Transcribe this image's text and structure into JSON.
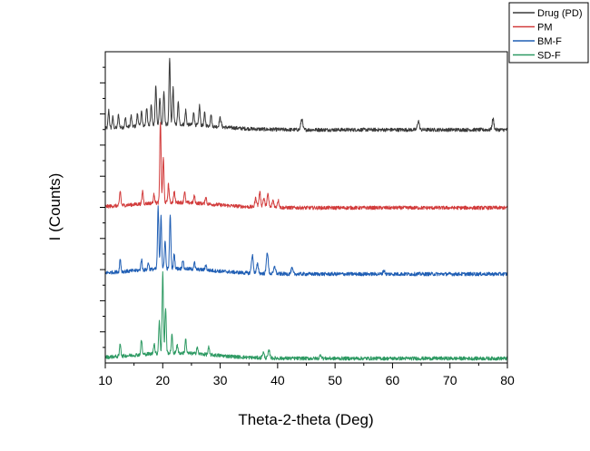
{
  "chart_data": {
    "type": "line",
    "xlabel": "Theta-2-theta (Deg)",
    "ylabel": "I (Counts)",
    "xlim": [
      10,
      80
    ],
    "x_ticks": [
      "10",
      "20",
      "30",
      "40",
      "50",
      "60",
      "70",
      "80"
    ],
    "grid": false,
    "legend_position": "top-right",
    "series": [
      {
        "name": "Drug (PD)",
        "color": "#3a3a3a",
        "offset": 3,
        "peaks": [
          [
            10.6,
            0.1
          ],
          [
            11.3,
            0.06
          ],
          [
            12.3,
            0.07
          ],
          [
            13.5,
            0.05
          ],
          [
            14.5,
            0.06
          ],
          [
            15.6,
            0.07
          ],
          [
            16.3,
            0.08
          ],
          [
            17.2,
            0.1
          ],
          [
            18.0,
            0.12
          ],
          [
            18.8,
            0.22
          ],
          [
            19.5,
            0.15
          ],
          [
            20.2,
            0.18
          ],
          [
            21.2,
            0.36
          ],
          [
            21.8,
            0.2
          ],
          [
            22.7,
            0.12
          ],
          [
            24.0,
            0.08
          ],
          [
            25.4,
            0.07
          ],
          [
            26.4,
            0.11
          ],
          [
            27.3,
            0.07
          ],
          [
            28.4,
            0.07
          ],
          [
            30.0,
            0.05
          ],
          [
            44.2,
            0.06
          ],
          [
            64.5,
            0.05
          ],
          [
            77.5,
            0.06
          ]
        ]
      },
      {
        "name": "PM",
        "color": "#d23c3c",
        "offset": 2,
        "peaks": [
          [
            12.6,
            0.08
          ],
          [
            16.5,
            0.07
          ],
          [
            18.5,
            0.05
          ],
          [
            19.6,
            0.45
          ],
          [
            20.1,
            0.25
          ],
          [
            21.0,
            0.1
          ],
          [
            22.0,
            0.06
          ],
          [
            23.8,
            0.06
          ],
          [
            25.5,
            0.04
          ],
          [
            27.5,
            0.04
          ],
          [
            36.2,
            0.05
          ],
          [
            36.9,
            0.08
          ],
          [
            37.6,
            0.05
          ],
          [
            38.3,
            0.07
          ],
          [
            39.2,
            0.04
          ],
          [
            40.1,
            0.04
          ]
        ]
      },
      {
        "name": "BM-F",
        "color": "#1f5eb4",
        "offset": 1,
        "peaks": [
          [
            12.6,
            0.07
          ],
          [
            16.3,
            0.06
          ],
          [
            17.5,
            0.04
          ],
          [
            19.2,
            0.34
          ],
          [
            19.7,
            0.3
          ],
          [
            20.4,
            0.16
          ],
          [
            21.3,
            0.3
          ],
          [
            22.0,
            0.08
          ],
          [
            23.5,
            0.05
          ],
          [
            25.5,
            0.04
          ],
          [
            27.5,
            0.03
          ],
          [
            35.6,
            0.1
          ],
          [
            36.5,
            0.05
          ],
          [
            38.2,
            0.12
          ],
          [
            39.5,
            0.04
          ],
          [
            42.5,
            0.03
          ],
          [
            58.5,
            0.02
          ]
        ]
      },
      {
        "name": "SD-F",
        "color": "#2e9a63",
        "offset": 0,
        "peaks": [
          [
            12.6,
            0.07
          ],
          [
            16.3,
            0.08
          ],
          [
            18.5,
            0.06
          ],
          [
            19.4,
            0.18
          ],
          [
            20.0,
            0.45
          ],
          [
            20.5,
            0.25
          ],
          [
            21.6,
            0.1
          ],
          [
            22.5,
            0.05
          ],
          [
            24.0,
            0.08
          ],
          [
            26.0,
            0.04
          ],
          [
            28.0,
            0.04
          ],
          [
            37.5,
            0.03
          ],
          [
            38.5,
            0.04
          ],
          [
            47.5,
            0.02
          ]
        ]
      }
    ]
  }
}
